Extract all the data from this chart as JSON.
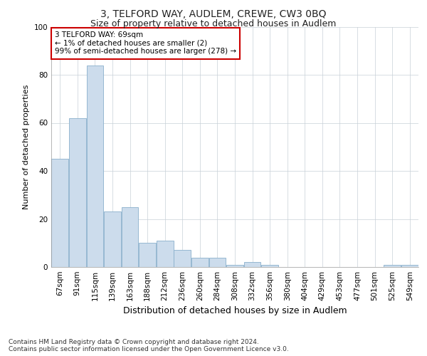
{
  "title1": "3, TELFORD WAY, AUDLEM, CREWE, CW3 0BQ",
  "title2": "Size of property relative to detached houses in Audlem",
  "xlabel": "Distribution of detached houses by size in Audlem",
  "ylabel": "Number of detached properties",
  "categories": [
    "67sqm",
    "91sqm",
    "115sqm",
    "139sqm",
    "163sqm",
    "188sqm",
    "212sqm",
    "236sqm",
    "260sqm",
    "284sqm",
    "308sqm",
    "332sqm",
    "356sqm",
    "380sqm",
    "404sqm",
    "429sqm",
    "453sqm",
    "477sqm",
    "501sqm",
    "525sqm",
    "549sqm"
  ],
  "values": [
    45,
    62,
    84,
    23,
    25,
    10,
    11,
    7,
    4,
    4,
    1,
    2,
    1,
    0,
    0,
    0,
    0,
    0,
    0,
    1,
    1
  ],
  "bar_color": "#ccdcec",
  "bar_edge_color": "#8ab0cc",
  "annotation_text": "3 TELFORD WAY: 69sqm\n← 1% of detached houses are smaller (2)\n99% of semi-detached houses are larger (278) →",
  "annotation_box_facecolor": "#ffffff",
  "annotation_box_edgecolor": "#cc0000",
  "ylim": [
    0,
    100
  ],
  "yticks": [
    0,
    20,
    40,
    60,
    80,
    100
  ],
  "grid_color": "#c8d0d8",
  "footnote": "Contains HM Land Registry data © Crown copyright and database right 2024.\nContains public sector information licensed under the Open Government Licence v3.0.",
  "title1_fontsize": 10,
  "title2_fontsize": 9,
  "xlabel_fontsize": 9,
  "ylabel_fontsize": 8,
  "tick_fontsize": 7.5,
  "annotation_fontsize": 7.5,
  "footnote_fontsize": 6.5
}
